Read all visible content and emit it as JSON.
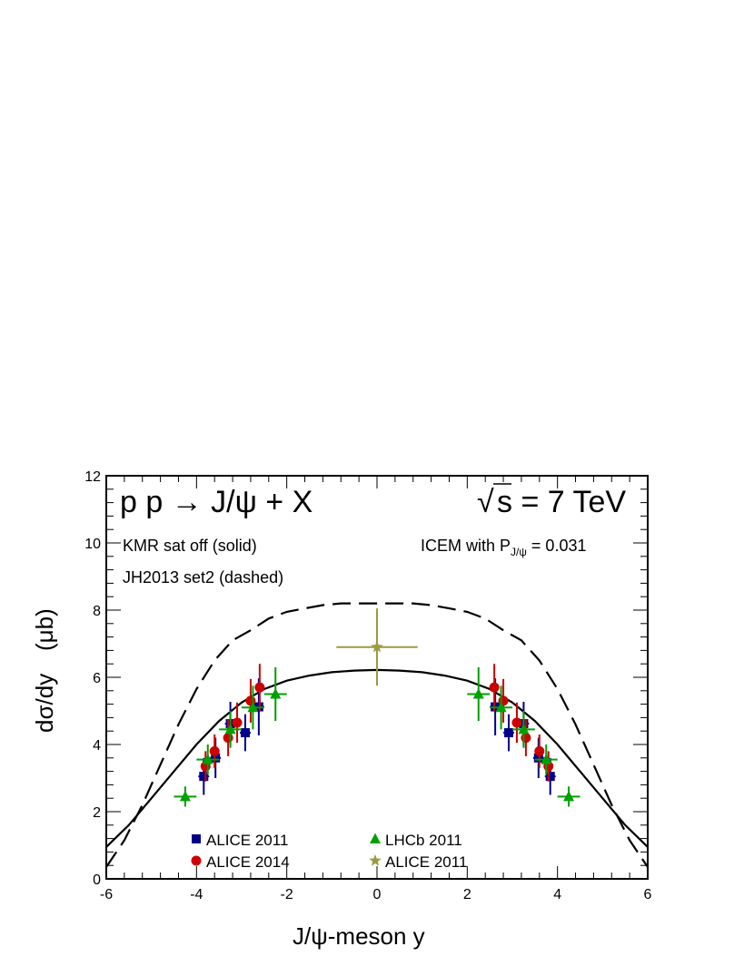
{
  "chart_data": {
    "type": "scatter",
    "title_left": "p p → J/ψ + X",
    "title_right_root": "√",
    "title_right_s": "s = 7 TeV",
    "annotations": {
      "kmr": "KMR sat off (solid)",
      "jh": "JH2013 set2 (dashed)",
      "icem_prefix": "ICEM with P",
      "icem_sub": "J/ψ",
      "icem_value": " = 0.031"
    },
    "xlabel": "J/ψ-meson  y",
    "ylabel_main": "dσ/dy",
    "ylabel_unit": "(μb)",
    "xlim": [
      -6,
      6
    ],
    "ylim": [
      0,
      12
    ],
    "xticks": [
      -6,
      -4,
      -2,
      0,
      2,
      4,
      6
    ],
    "yticks": [
      0,
      2,
      4,
      6,
      8,
      10,
      12
    ],
    "curves": [
      {
        "style": "solid",
        "x": [
          -6,
          -5.5,
          -5,
          -4.5,
          -4,
          -3.5,
          -3,
          -2.5,
          -2,
          -1.5,
          -1,
          -0.5,
          0,
          0.5,
          1,
          1.5,
          2,
          2.5,
          3,
          3.5,
          4,
          4.5,
          5,
          5.5,
          6
        ],
        "y": [
          0.95,
          1.6,
          2.4,
          3.2,
          4.0,
          4.7,
          5.25,
          5.65,
          5.9,
          6.05,
          6.15,
          6.2,
          6.22,
          6.2,
          6.15,
          6.05,
          5.9,
          5.65,
          5.25,
          4.7,
          4.0,
          3.2,
          2.4,
          1.6,
          0.95
        ]
      },
      {
        "style": "dashed",
        "x": [
          -6,
          -5.6,
          -5.2,
          -4.8,
          -4.4,
          -4,
          -3.6,
          -3.2,
          -2.8,
          -2.4,
          -2,
          -1.6,
          -1.2,
          -0.8,
          -0.4,
          0,
          0.4,
          0.8,
          1.2,
          1.6,
          2,
          2.4,
          2.8,
          3.2,
          3.6,
          4,
          4.4,
          4.8,
          5.2,
          5.6,
          6
        ],
        "y": [
          0.35,
          1.15,
          2.2,
          3.4,
          4.6,
          5.65,
          6.5,
          7.1,
          7.4,
          7.75,
          7.95,
          8.05,
          8.15,
          8.2,
          8.2,
          8.2,
          8.2,
          8.2,
          8.15,
          8.05,
          7.95,
          7.75,
          7.4,
          7.1,
          6.5,
          5.65,
          4.6,
          3.4,
          2.2,
          1.15,
          0.35
        ]
      }
    ],
    "series": [
      {
        "name": "ALICE 2011",
        "marker": "square",
        "color": "#00008b",
        "points": [
          {
            "x": -3.84,
            "y": 3.05,
            "xerr": 0.12,
            "yerr": 0.55
          },
          {
            "x": -3.58,
            "y": 3.6,
            "xerr": 0.12,
            "yerr": 0.6
          },
          {
            "x": -3.25,
            "y": 4.62,
            "xerr": 0.12,
            "yerr": 0.65
          },
          {
            "x": -2.92,
            "y": 4.35,
            "xerr": 0.12,
            "yerr": 0.55
          },
          {
            "x": -2.62,
            "y": 5.12,
            "xerr": 0.12,
            "yerr": 0.85
          },
          {
            "x": 2.62,
            "y": 5.12,
            "xerr": 0.12,
            "yerr": 0.85
          },
          {
            "x": 2.92,
            "y": 4.35,
            "xerr": 0.12,
            "yerr": 0.55
          },
          {
            "x": 3.25,
            "y": 4.62,
            "xerr": 0.12,
            "yerr": 0.65
          },
          {
            "x": 3.58,
            "y": 3.6,
            "xerr": 0.12,
            "yerr": 0.6
          },
          {
            "x": 3.84,
            "y": 3.05,
            "xerr": 0.12,
            "yerr": 0.55
          }
        ]
      },
      {
        "name": "ALICE 2014",
        "marker": "circle",
        "color": "#cc0000",
        "points": [
          {
            "x": -3.8,
            "y": 3.35,
            "xerr": 0.1,
            "yerr": 0.45
          },
          {
            "x": -3.6,
            "y": 3.8,
            "xerr": 0.1,
            "yerr": 0.5
          },
          {
            "x": -3.3,
            "y": 4.2,
            "xerr": 0.1,
            "yerr": 0.55
          },
          {
            "x": -3.1,
            "y": 4.65,
            "xerr": 0.1,
            "yerr": 0.6
          },
          {
            "x": -2.8,
            "y": 5.3,
            "xerr": 0.1,
            "yerr": 0.65
          },
          {
            "x": -2.6,
            "y": 5.7,
            "xerr": 0.1,
            "yerr": 0.7
          },
          {
            "x": 2.6,
            "y": 5.7,
            "xerr": 0.1,
            "yerr": 0.7
          },
          {
            "x": 2.8,
            "y": 5.3,
            "xerr": 0.1,
            "yerr": 0.65
          },
          {
            "x": 3.1,
            "y": 4.65,
            "xerr": 0.1,
            "yerr": 0.6
          },
          {
            "x": 3.3,
            "y": 4.2,
            "xerr": 0.1,
            "yerr": 0.55
          },
          {
            "x": 3.6,
            "y": 3.8,
            "xerr": 0.1,
            "yerr": 0.5
          },
          {
            "x": 3.8,
            "y": 3.35,
            "xerr": 0.1,
            "yerr": 0.45
          }
        ]
      },
      {
        "name": "LHCb 2011",
        "marker": "triangle",
        "color": "#00a000",
        "points": [
          {
            "x": -4.25,
            "y": 2.45,
            "xerr": 0.25,
            "yerr": 0.3
          },
          {
            "x": -3.75,
            "y": 3.55,
            "xerr": 0.25,
            "yerr": 0.45
          },
          {
            "x": -3.25,
            "y": 4.45,
            "xerr": 0.25,
            "yerr": 0.55
          },
          {
            "x": -2.75,
            "y": 5.1,
            "xerr": 0.25,
            "yerr": 0.65
          },
          {
            "x": -2.25,
            "y": 5.5,
            "xerr": 0.25,
            "yerr": 0.8
          },
          {
            "x": 2.25,
            "y": 5.5,
            "xerr": 0.25,
            "yerr": 0.8
          },
          {
            "x": 2.75,
            "y": 5.1,
            "xerr": 0.25,
            "yerr": 0.65
          },
          {
            "x": 3.25,
            "y": 4.45,
            "xerr": 0.25,
            "yerr": 0.55
          },
          {
            "x": 3.75,
            "y": 3.55,
            "xerr": 0.25,
            "yerr": 0.45
          },
          {
            "x": 4.25,
            "y": 2.45,
            "xerr": 0.25,
            "yerr": 0.3
          }
        ]
      },
      {
        "name": "ALICE 2011",
        "marker": "star",
        "color": "#9a9a40",
        "points": [
          {
            "x": 0,
            "y": 6.9,
            "xerr": 0.9,
            "yerr": 1.15
          }
        ]
      }
    ],
    "legend_placement": "bottom-center",
    "grid": false
  }
}
